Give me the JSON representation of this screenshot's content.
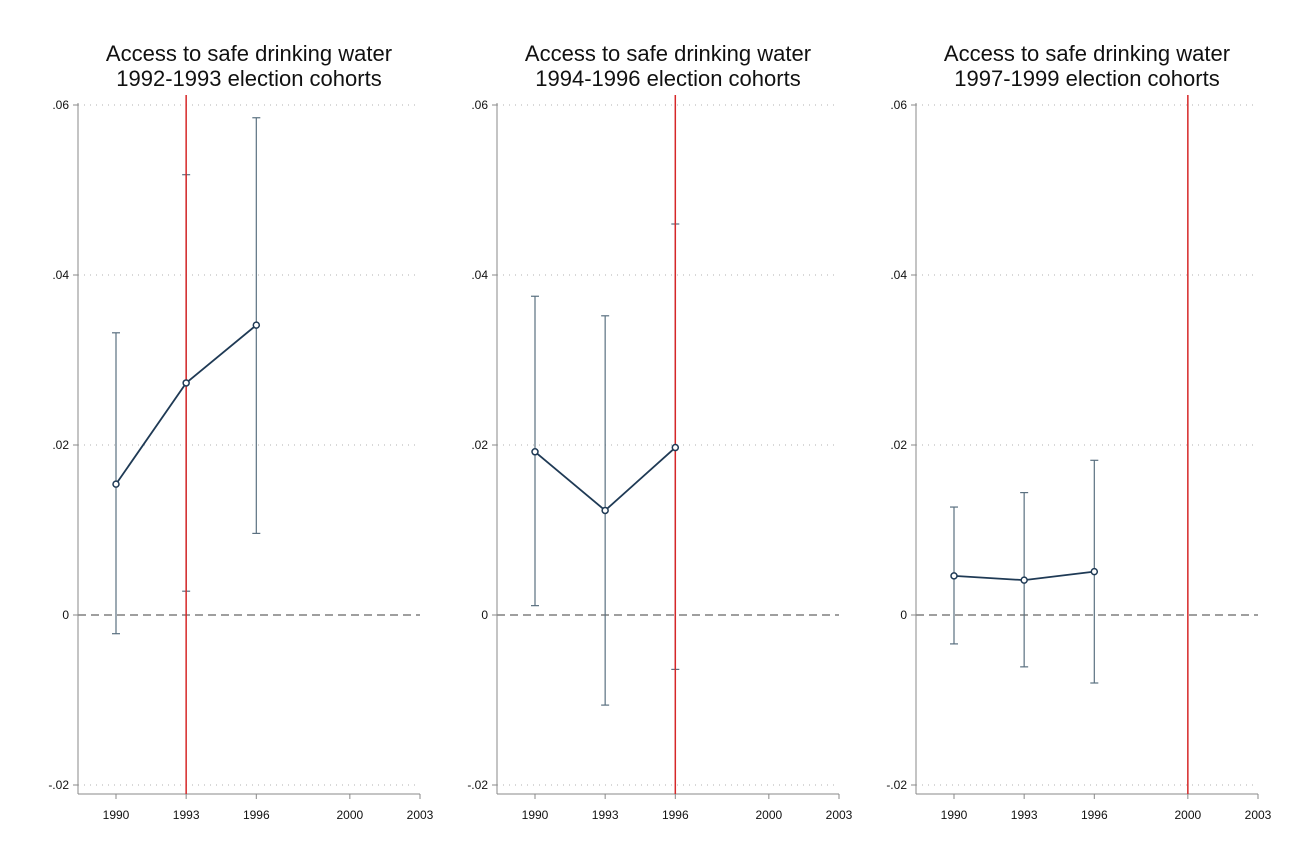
{
  "chart_data": [
    {
      "type": "line",
      "title": [
        "Access to safe drinking water",
        "1992-1993 election cohorts"
      ],
      "xlabel": "",
      "ylabel": "",
      "x_ticks": [
        1990,
        1993,
        1996,
        2000,
        2003
      ],
      "y_ticks": [
        -0.02,
        0,
        0.02,
        0.04,
        0.06
      ],
      "y_tick_labels": [
        "-.02",
        "0",
        ".02",
        ".04",
        ".06"
      ],
      "xlim": [
        1988.5,
        2003
      ],
      "ylim": [
        -0.02,
        0.061
      ],
      "grid": "horizontal dotted",
      "reference_line_y": 0,
      "vertical_line_x": 1993,
      "series": [
        {
          "x": [
            1990,
            1993,
            1996
          ],
          "y": [
            0.0154,
            0.0273,
            0.0341
          ],
          "ci_low": [
            -0.0022,
            0.0028,
            0.0096
          ],
          "ci_high": [
            0.0332,
            0.0518,
            0.0585
          ]
        }
      ]
    },
    {
      "type": "line",
      "title": [
        "Access to safe drinking water",
        "1994-1996 election cohorts"
      ],
      "xlabel": "",
      "ylabel": "",
      "x_ticks": [
        1990,
        1993,
        1996,
        2000,
        2003
      ],
      "y_ticks": [
        -0.02,
        0,
        0.02,
        0.04,
        0.06
      ],
      "y_tick_labels": [
        "-.02",
        "0",
        ".02",
        ".04",
        ".06"
      ],
      "xlim": [
        1988.5,
        2003
      ],
      "ylim": [
        -0.02,
        0.061
      ],
      "grid": "horizontal dotted",
      "reference_line_y": 0,
      "vertical_line_x": 1996,
      "series": [
        {
          "x": [
            1990,
            1993,
            1996
          ],
          "y": [
            0.0192,
            0.0123,
            0.0197
          ],
          "ci_low": [
            0.0011,
            -0.0106,
            -0.0064
          ],
          "ci_high": [
            0.0375,
            0.0352,
            0.046
          ]
        }
      ]
    },
    {
      "type": "line",
      "title": [
        "Access to safe drinking water",
        "1997-1999 election cohorts"
      ],
      "xlabel": "",
      "ylabel": "",
      "x_ticks": [
        1990,
        1993,
        1996,
        2000,
        2003
      ],
      "y_ticks": [
        -0.02,
        0,
        0.02,
        0.04,
        0.06
      ],
      "y_tick_labels": [
        "-.02",
        "0",
        ".02",
        ".04",
        ".06"
      ],
      "xlim": [
        1988.5,
        2003
      ],
      "ylim": [
        -0.02,
        0.061
      ],
      "grid": "horizontal dotted",
      "reference_line_y": 0,
      "vertical_line_x": 2000,
      "series": [
        {
          "x": [
            1990,
            1993,
            1996
          ],
          "y": [
            0.0046,
            0.0041,
            0.0051
          ],
          "ci_low": [
            -0.0034,
            -0.0061,
            -0.008
          ],
          "ci_high": [
            0.0127,
            0.0144,
            0.0182
          ]
        }
      ]
    }
  ],
  "colors": {
    "series": "#1f3a55",
    "ci": "#5a7080",
    "vertical_line": "#d62728",
    "zero_line": "#666666",
    "grid": "#b0b0b0",
    "axis": "#888888"
  }
}
